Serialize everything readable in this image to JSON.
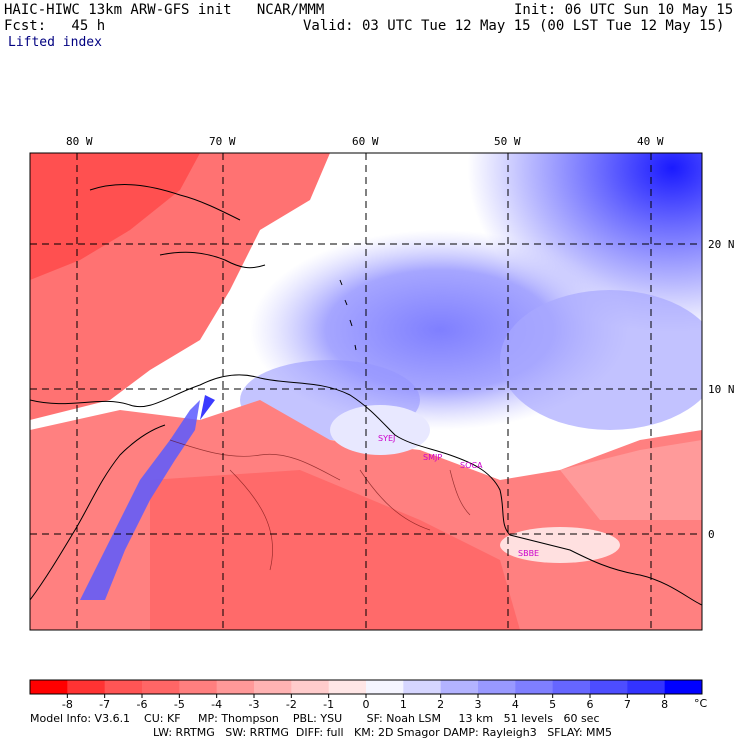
{
  "header": {
    "line1_left": "HAIC-HIWC 13km ARW-GFS init   NCAR/MMM",
    "line1_right": "Init: 06 UTC Sun 10 May 15",
    "line2_left": "Fcst:   45 h",
    "line2_right": "Valid: 03 UTC Tue 12 May 15 (00 LST Tue 12 May 15)",
    "field": "Lifted index"
  },
  "map": {
    "lon_labels": [
      "80 W",
      "70 W",
      "60 W",
      "50 W",
      "40 W"
    ],
    "lat_labels": [
      "20 N",
      "10 N",
      "0"
    ],
    "stations": [
      "SYEJ",
      "SMJP",
      "SOCA",
      "SBBE"
    ]
  },
  "colorbar": {
    "ticks": [
      "-8",
      "-7",
      "-6",
      "-5",
      "-4",
      "-3",
      "-2",
      "-1",
      "0",
      "1",
      "2",
      "3",
      "4",
      "5",
      "6",
      "7",
      "8"
    ],
    "unit": "°C",
    "colors": [
      "#ff0000",
      "#ff3333",
      "#ff5555",
      "#ff6666",
      "#ff7f7f",
      "#ff9999",
      "#ffb3b3",
      "#ffcccc",
      "#ffe6e6",
      "#f5f5ff",
      "#d6d6ff",
      "#b3b3ff",
      "#9999ff",
      "#7f7fff",
      "#6666ff",
      "#4d4dff",
      "#3333ff",
      "#0000ff"
    ]
  },
  "footer": {
    "line1": "Model Info: V3.6.1    CU: KF     MP: Thompson    PBL: YSU       SF: Noah LSM     13 km   51 levels   60 sec",
    "line2": "LW: RRTMG   SW: RRTMG  DIFF: full   KM: 2D Smagor DAMP: Rayleigh3   SFLAY: MM5"
  }
}
